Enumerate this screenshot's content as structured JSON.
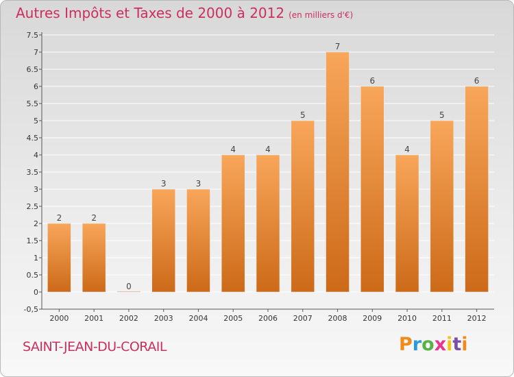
{
  "header": {
    "title": "Autres Impôts et Taxes de 2000 à 2012",
    "subtitle": "(en milliers d'€)"
  },
  "footer": {
    "commune": "SAINT-JEAN-DU-CORAIL",
    "brand": "Proxiti",
    "brand_colors": [
      "#f08a1c",
      "#2a9bd8",
      "#58b247",
      "#e8368f",
      "#f0c419",
      "#7a4fa8",
      "#f08a1c"
    ]
  },
  "chart_data": {
    "type": "bar",
    "categories": [
      "2000",
      "2001",
      "2002",
      "2003",
      "2004",
      "2005",
      "2006",
      "2007",
      "2008",
      "2009",
      "2010",
      "2011",
      "2012"
    ],
    "values": [
      2,
      2,
      0,
      3,
      3,
      4,
      4,
      5,
      7,
      6,
      4,
      5,
      6
    ],
    "data_labels": [
      "2",
      "2",
      "0",
      "3",
      "3",
      "4",
      "4",
      "5",
      "7",
      "6",
      "4",
      "5",
      "6"
    ],
    "title": "Autres Impôts et Taxes de 2000 à 2012",
    "ylim": [
      -0.5,
      7.5
    ],
    "yticks": [
      "-0,5",
      "0",
      "0.5",
      "1",
      "1.5",
      "2",
      "2.5",
      "3",
      "3.5",
      "4",
      "4.5",
      "5",
      "5.5",
      "6",
      "6.5",
      "7",
      "7.5"
    ],
    "ytick_values": [
      -0.5,
      0,
      0.5,
      1,
      1.5,
      2,
      2.5,
      3,
      3.5,
      4,
      4.5,
      5,
      5.5,
      6,
      6.5,
      7,
      7.5
    ],
    "grid": true,
    "colors": {
      "bar_light": "#f8a65a",
      "bar_dark": "#cc6a18",
      "grid": "#ffffff",
      "axis": "#555555"
    }
  }
}
